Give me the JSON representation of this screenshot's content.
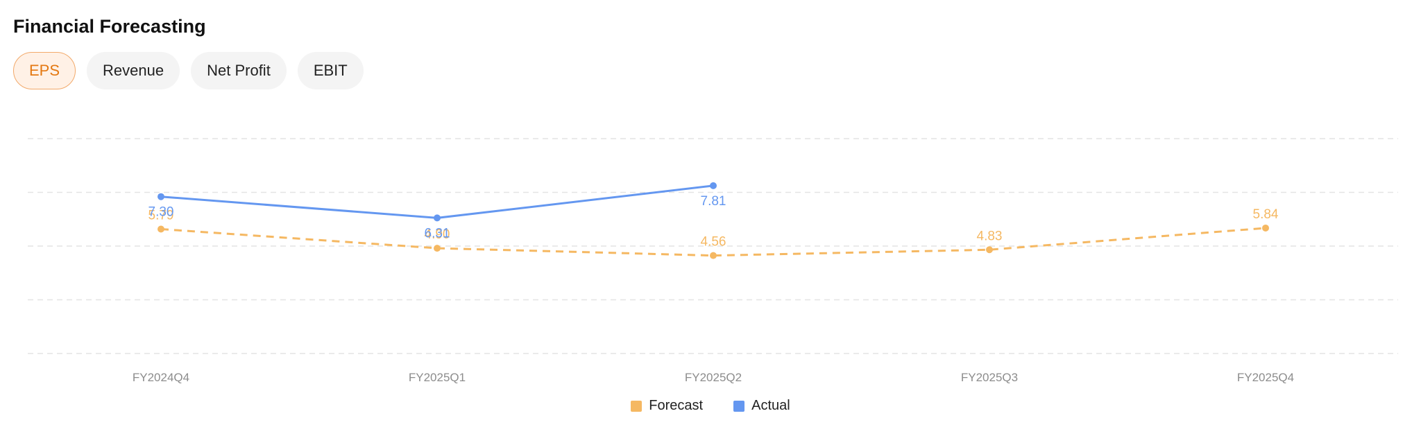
{
  "header": {
    "title": "Financial Forecasting"
  },
  "tabs": [
    {
      "label": "EPS",
      "active": true
    },
    {
      "label": "Revenue",
      "active": false
    },
    {
      "label": "Net Profit",
      "active": false
    },
    {
      "label": "EBIT",
      "active": false
    }
  ],
  "colors": {
    "forecast": "#f5b862",
    "actual": "#6497f0",
    "accent": "#e47811"
  },
  "chart_data": {
    "type": "line",
    "title": "",
    "xlabel": "",
    "ylabel": "",
    "categories": [
      "FY2024Q4",
      "FY2025Q1",
      "FY2025Q2",
      "FY2025Q3",
      "FY2025Q4"
    ],
    "ylim": [
      0,
      10
    ],
    "grid": true,
    "legend_position": "bottom-center",
    "series": [
      {
        "name": "Forecast",
        "values": [
          5.79,
          4.9,
          4.56,
          4.83,
          5.84
        ],
        "labels": [
          "5.79",
          "4.90",
          "4.56",
          "4.83",
          "5.84"
        ],
        "style": "dashed",
        "color": "#f5b862"
      },
      {
        "name": "Actual",
        "values": [
          7.3,
          6.31,
          7.81,
          null,
          null
        ],
        "labels": [
          "7.30",
          "6.31",
          "7.81",
          "",
          ""
        ],
        "style": "solid",
        "color": "#6497f0"
      }
    ]
  }
}
